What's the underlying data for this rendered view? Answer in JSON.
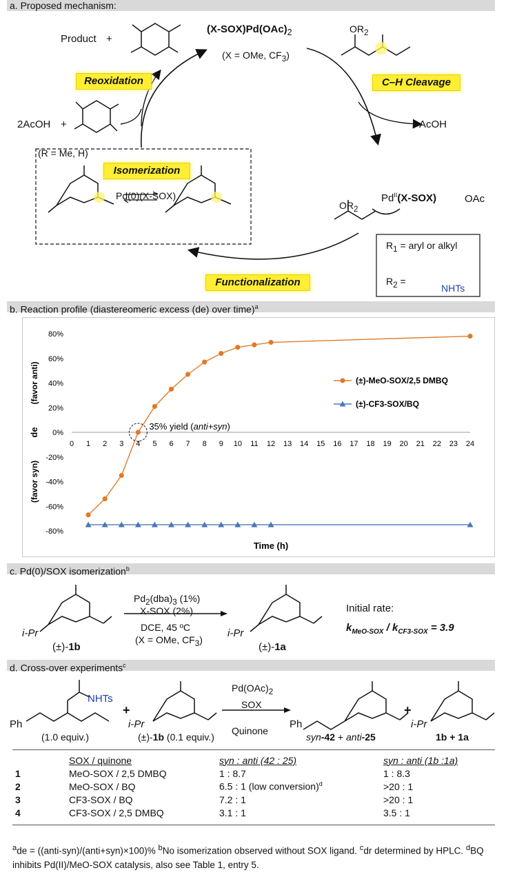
{
  "sections": {
    "a": "a. Proposed mechanism:",
    "b": "b. Reaction profile (diastereomeric excess (de) over time)",
    "b_sup": "a",
    "c": "c. Pd(0)/SOX isomerization",
    "c_sup": "b",
    "d": "d. Cross-over experiments",
    "d_sup": "c"
  },
  "mechanism": {
    "catalyst": "(X-SOX)Pd(OAc)",
    "catalyst_sub": "2",
    "catalyst_note": "(X = OMe, CF",
    "catalyst_note_sub": "3",
    "catalyst_note_end": ")",
    "product": "Product",
    "plus": "+",
    "acoh_out": "AcOH",
    "acoh_in": "2AcOH",
    "quinone_note": "(R = Me, H)",
    "reox": "Reoxidation",
    "ch": "C–H Cleavage",
    "isom": "Isomerization",
    "func": "Functionalization",
    "pd0": "Pd(0)(X-SOX)",
    "pi_allyl": "Pd",
    "pi_allyl_sup": "II",
    "pi_allyl_lig": "(X-SOX)",
    "oac": "OAc",
    "r1_def": "R",
    "r1_def_sub": "1",
    "r1_def_text": " = aryl or alkyl",
    "r2_def": "R",
    "r2_def_sub": "2",
    "r2_def_eq": " =",
    "nhts": "NHTs",
    "or2": "OR",
    "or2_sub": "2"
  },
  "chart_data": {
    "type": "line",
    "x": [
      0,
      1,
      2,
      3,
      4,
      5,
      6,
      7,
      8,
      9,
      10,
      11,
      12,
      13,
      14,
      15,
      16,
      17,
      18,
      19,
      20,
      21,
      22,
      23,
      24
    ],
    "xlabel": "Time (h)",
    "ylabel": "de",
    "ylabel_top": "(favor anti)",
    "ylabel_bottom": "(favor syn)",
    "ylim": [
      -80,
      80
    ],
    "yticks": [
      "80%",
      "60%",
      "40%",
      "20%",
      "0%",
      "-20%",
      "-40%",
      "-60%",
      "-80%"
    ],
    "series": [
      {
        "name": "(±)-MeO-SOX/2,5 DMBQ",
        "color": "#e07b2a",
        "marker": "circle",
        "x": [
          1,
          2,
          3,
          4,
          5,
          6,
          7,
          8,
          9,
          10,
          11,
          12,
          24
        ],
        "y": [
          -67,
          -54,
          -35,
          0,
          21,
          35,
          47,
          57,
          64,
          69,
          71,
          73,
          78
        ]
      },
      {
        "name": "(±)-CF3-SOX/BQ",
        "color": "#4a78b8",
        "marker": "triangle",
        "x": [
          1,
          2,
          3,
          4,
          5,
          6,
          7,
          8,
          9,
          10,
          11,
          12,
          24
        ],
        "y": [
          -75,
          -75,
          -75,
          -75,
          -75,
          -75,
          -75,
          -75,
          -75,
          -75,
          -75,
          -75,
          -75
        ]
      }
    ],
    "annotation": "35% yield (",
    "annotation_it": "anti+syn",
    "annotation_end": ")"
  },
  "isomerization": {
    "reagent1": "Pd",
    "reagent1_b": "(dba)",
    "reagent1_c": " (1%)",
    "reagent2": "X-SOX (2%)",
    "cond1": "DCE, 45 ºC",
    "cond2": "(X = OMe, CF",
    "cond2_end": ")",
    "sm_label": "(±)-",
    "sm_bold": "1b",
    "pr_label": "(±)-",
    "pr_bold": "1a",
    "rate_title": "Initial rate:",
    "rate_k1": "k",
    "rate_k1_sub": "MeO-SOX",
    "rate_sep": " / ",
    "rate_k2": "k",
    "rate_k2_sub": "CF3-SOX",
    "rate_val": " = 3.9",
    "ipr": "i-Pr"
  },
  "crossover": {
    "reagent1": "Pd(OAc)",
    "reagent2": "SOX",
    "reagent3": "Quinone",
    "sm1_equiv": "(1.0 equiv.)",
    "sm2_equiv": "(0.1 equiv.)",
    "sm2_label": "(±)-",
    "sm2_bold": "1b",
    "ph": "Ph",
    "prod1_a": "syn",
    "prod1_b": "-42",
    "prod1_c": " + ",
    "prod1_d": "anti",
    "prod1_e": "-25",
    "prod2": "1b + 1a",
    "head_sox": "SOX / quinone",
    "head_r1": "syn : anti (42 : 25)",
    "head_r2": "syn : anti (1b :1a)",
    "rows": [
      {
        "entry": "1",
        "sox": "MeO-SOX / 2,5 DMBQ",
        "r1": "1   : 8.7",
        "r2": "1   : 8.3"
      },
      {
        "entry": "2",
        "sox": "MeO-SOX / BQ",
        "r1": "6.5 :  1 (low conversion)",
        "r1_sup": "d",
        "r2": ">20 :  1"
      },
      {
        "entry": "3",
        "sox": "CF3-SOX / BQ",
        "r1": "7.2 :  1",
        "r2": ">20 :  1"
      },
      {
        "entry": "4",
        "sox": "CF3-SOX / 2,5 DMBQ",
        "r1": "3.1 :  1",
        "r2": "3.5 :  1"
      }
    ]
  },
  "footnotes": {
    "a_sup": "a",
    "a_text": "de = ((anti-syn)/(anti+syn)×100)%",
    "b_sup": "b",
    "b_text": "No isomerization observed without SOX ligand.",
    "c_sup": "c",
    "c_text": "dr determined by HPLC.",
    "d_sup": "d",
    "d_text": "BQ inhibits Pd(II)/MeO-SOX catalysis, also see Table 1, entry 5."
  }
}
